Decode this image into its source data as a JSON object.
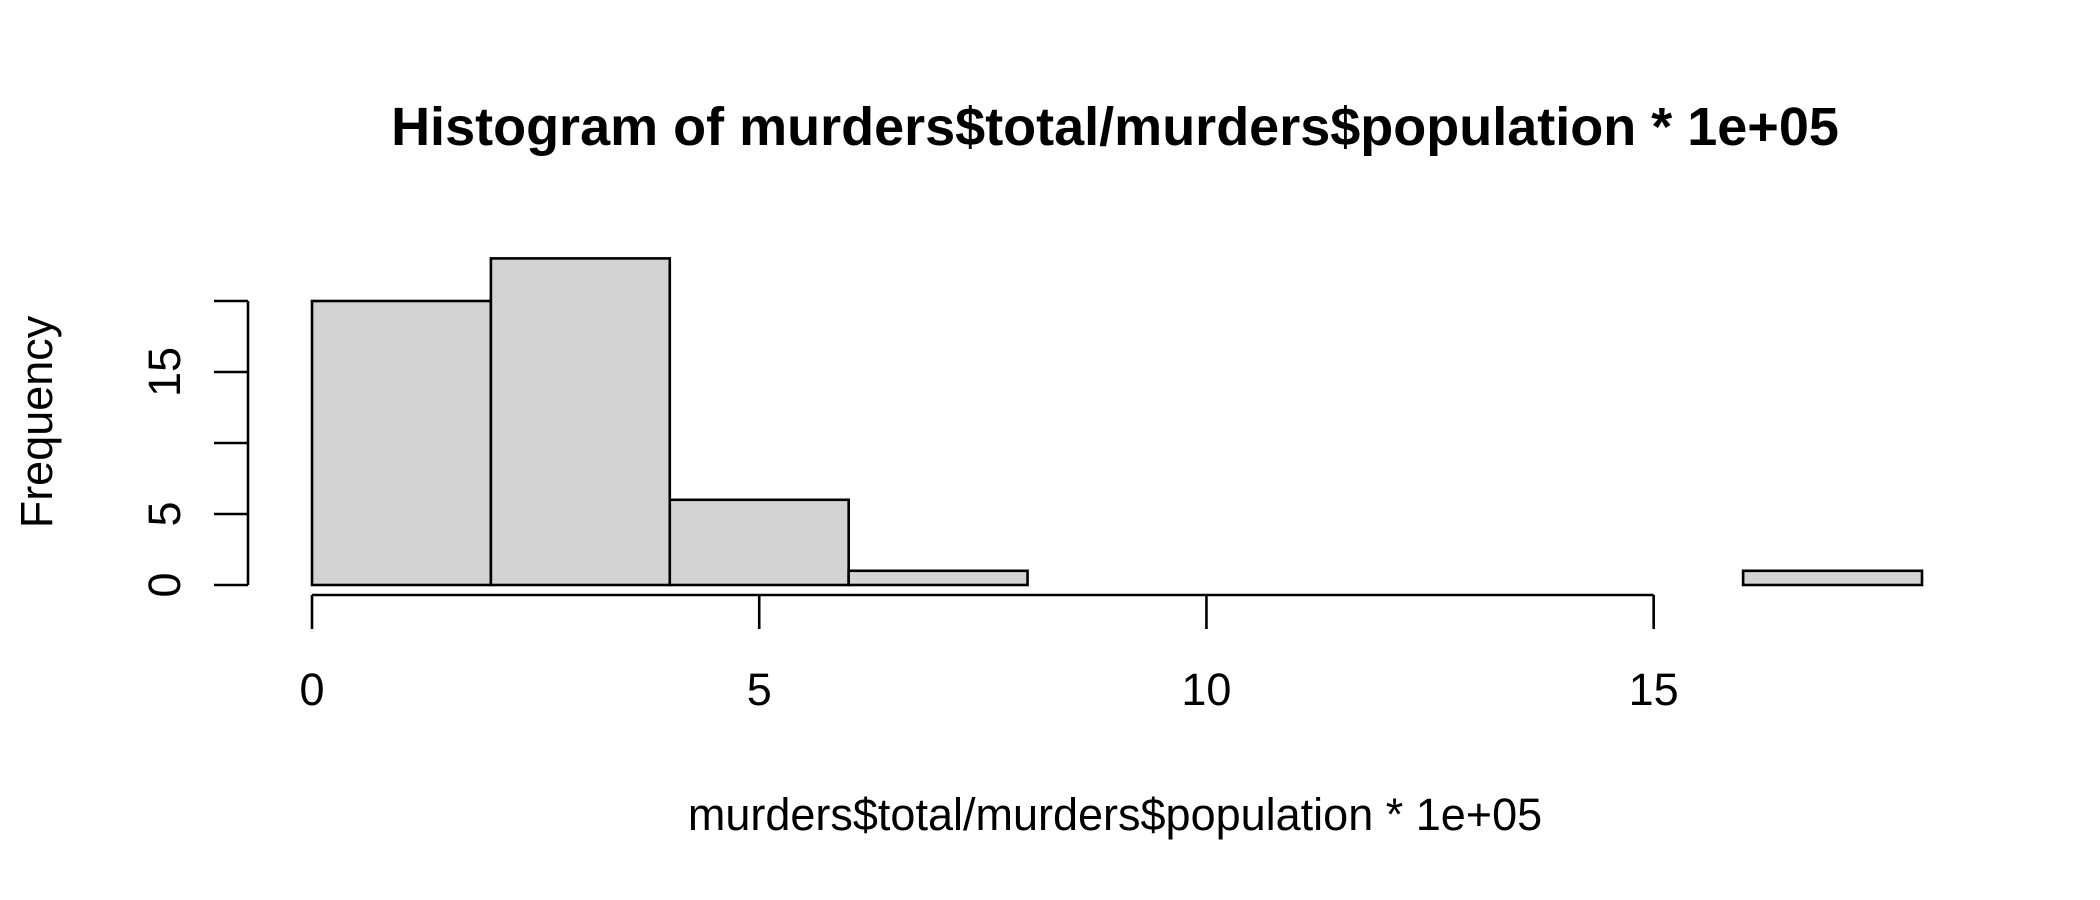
{
  "chart_data": {
    "type": "bar",
    "title": "Histogram of murders$total/murders$population * 1e+05",
    "xlabel": "murders$total/murders$population * 1e+05",
    "ylabel": "Frequency",
    "bins": [
      {
        "x0": 0,
        "x1": 2,
        "count": 20
      },
      {
        "x0": 2,
        "x1": 4,
        "count": 23
      },
      {
        "x0": 4,
        "x1": 6,
        "count": 6
      },
      {
        "x0": 6,
        "x1": 8,
        "count": 1
      },
      {
        "x0": 8,
        "x1": 10,
        "count": 0
      },
      {
        "x0": 10,
        "x1": 12,
        "count": 0
      },
      {
        "x0": 12,
        "x1": 14,
        "count": 0
      },
      {
        "x0": 14,
        "x1": 16,
        "count": 0
      },
      {
        "x0": 16,
        "x1": 18,
        "count": 1
      }
    ],
    "x_ticks": [
      0,
      5,
      10,
      15
    ],
    "y_ticks": [
      0,
      5,
      10,
      15,
      20
    ],
    "y_tick_labels": [
      "0",
      "5",
      "",
      "15",
      ""
    ],
    "xlim": [
      0,
      18
    ],
    "ylim": [
      0,
      23
    ],
    "grid": false,
    "colors": {
      "bar_fill": "#d3d3d3",
      "bar_stroke": "#000000",
      "axis": "#000000",
      "background": "#ffffff"
    }
  }
}
